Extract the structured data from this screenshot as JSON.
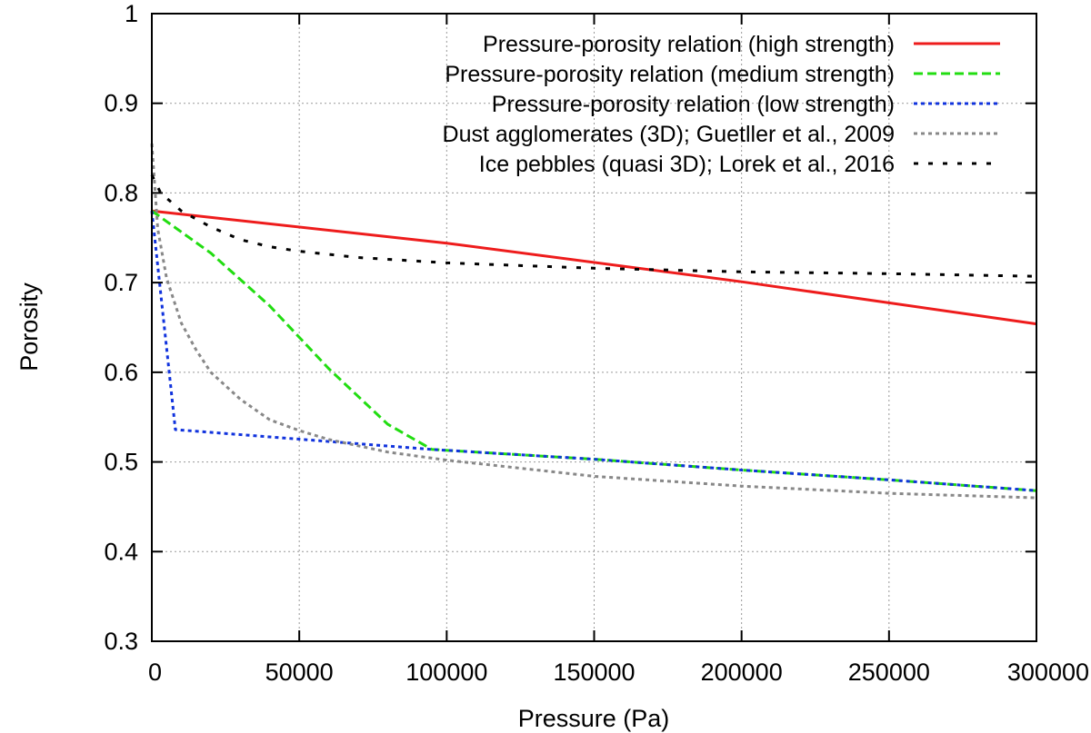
{
  "chart_data": {
    "type": "line",
    "title": "",
    "xlabel": "Pressure (Pa)",
    "ylabel": "Porosity",
    "xlim": [
      0,
      300000
    ],
    "ylim": [
      0.3,
      1.0
    ],
    "grid": true,
    "legend_position": "top-right",
    "x_ticks": [
      0,
      50000,
      100000,
      150000,
      200000,
      250000,
      300000
    ],
    "x_tick_labels": [
      "0",
      "50000",
      "100000",
      "150000",
      "200000",
      "250000",
      "300000"
    ],
    "y_ticks": [
      0.3,
      0.4,
      0.5,
      0.6,
      0.7,
      0.8,
      0.9,
      1.0
    ],
    "y_tick_labels": [
      "0.3",
      "0.4",
      "0.5",
      "0.6",
      "0.7",
      "0.8",
      "0.9",
      "1"
    ],
    "series": [
      {
        "name": "Pressure-porosity relation (high strength)",
        "color": "#ee1c1c",
        "style": "solid",
        "x": [
          0,
          100000,
          200000,
          300000
        ],
        "y": [
          0.78,
          0.744,
          0.701,
          0.654
        ]
      },
      {
        "name": "Pressure-porosity relation (medium strength)",
        "color": "#22dd11",
        "style": "dashed",
        "x": [
          0,
          20000,
          40000,
          60000,
          80000,
          95000,
          150000,
          200000,
          250000,
          300000
        ],
        "y": [
          0.78,
          0.733,
          0.674,
          0.604,
          0.542,
          0.514,
          0.503,
          0.491,
          0.48,
          0.468
        ]
      },
      {
        "name": "Pressure-porosity relation (low strength)",
        "color": "#1133dd",
        "style": "dotted",
        "x": [
          0,
          8000,
          95000,
          150000,
          200000,
          250000,
          300000
        ],
        "y": [
          0.78,
          0.536,
          0.514,
          0.503,
          0.491,
          0.48,
          0.468
        ]
      },
      {
        "name": "Dust agglomerates (3D); Guetller et al., 2009",
        "color": "#888888",
        "style": "dotted",
        "x": [
          0,
          2000,
          5000,
          10000,
          15000,
          20000,
          30000,
          40000,
          50000,
          60000,
          80000,
          100000,
          150000,
          200000,
          250000,
          300000
        ],
        "y": [
          0.855,
          0.76,
          0.705,
          0.655,
          0.625,
          0.6,
          0.57,
          0.547,
          0.535,
          0.525,
          0.511,
          0.502,
          0.484,
          0.473,
          0.465,
          0.46
        ]
      },
      {
        "name": "Ice pebbles (quasi 3D); Lorek et al., 2016",
        "color": "#000000",
        "style": "loose-dashed",
        "x": [
          0,
          3000,
          10000,
          20000,
          30000,
          40000,
          50000,
          70000,
          100000,
          150000,
          200000,
          250000,
          300000
        ],
        "y": [
          0.82,
          0.8,
          0.78,
          0.762,
          0.748,
          0.74,
          0.735,
          0.728,
          0.722,
          0.716,
          0.712,
          0.71,
          0.707
        ]
      }
    ]
  }
}
